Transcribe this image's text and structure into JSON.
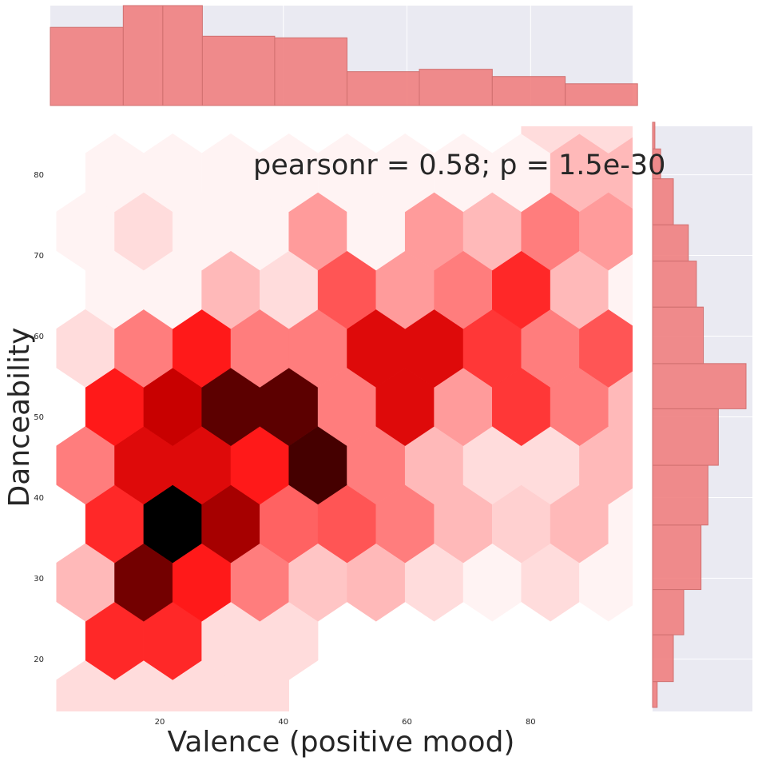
{
  "chart_data": {
    "type": "hexbin",
    "annotation": "pearsonr = 0.58; p = 1.5e-30",
    "xlabel": "Valence (positive mood)",
    "ylabel": "Danceability",
    "xlim": [
      2.3,
      96.5
    ],
    "ylim": [
      13.5,
      86
    ],
    "xticks": [
      20,
      40,
      60,
      80
    ],
    "yticks": [
      20,
      30,
      40,
      50,
      60,
      70,
      80
    ],
    "colormap": "Reds",
    "colors": {
      "hist_fill": "#f08080",
      "hist_edge": "#d07070",
      "margin_bg": "#eaeaf2",
      "grid": "#ffffff"
    },
    "hex_grid": {
      "x0": 8.0,
      "dx": 9.4,
      "y0": 15.0,
      "dy": 7.25,
      "rows": [
        {
          "row": 0,
          "cells": [
            0.15,
            0.15,
            0.15,
            0.15,
            0,
            0,
            0,
            0,
            0,
            0
          ]
        },
        {
          "row": 1,
          "cells": [
            0.8,
            0.8,
            0.15,
            0.15,
            0,
            0,
            0,
            0,
            0,
            0
          ]
        },
        {
          "row": 2,
          "cells": [
            0.3,
            0.95,
            0.85,
            0.5,
            0.25,
            0.3,
            0.15,
            0.05,
            0.15,
            0.05
          ]
        },
        {
          "row": 3,
          "cells": [
            0.8,
            1.0,
            0.92,
            0.6,
            0.65,
            0.5,
            0.3,
            0.2,
            0.3,
            0.05
          ]
        },
        {
          "row": 4,
          "cells": [
            0.5,
            0.88,
            0.88,
            0.85,
            0.97,
            0.5,
            0.3,
            0.15,
            0.15,
            0.3,
            0.3
          ]
        },
        {
          "row": 5,
          "cells": [
            0.85,
            0.9,
            0.96,
            0.96,
            0.5,
            0.88,
            0.4,
            0.75,
            0.5,
            0.3
          ]
        },
        {
          "row": 6,
          "cells": [
            0.15,
            0.5,
            0.85,
            0.5,
            0.5,
            0.88,
            0.88,
            0.75,
            0.5,
            0.65,
            0.15
          ]
        },
        {
          "row": 7,
          "cells": [
            0.05,
            0.05,
            0.3,
            0.15,
            0.65,
            0.4,
            0.5,
            0.8,
            0.3,
            0.05
          ]
        },
        {
          "row": 8,
          "cells": [
            0.05,
            0.15,
            0.05,
            0.05,
            0.4,
            0.05,
            0.4,
            0.3,
            0.5,
            0.4,
            0.5
          ]
        },
        {
          "row": 9,
          "cells": [
            0.05,
            0.05,
            0.05,
            0.05,
            0.05,
            0.05,
            0.05,
            0.05,
            0.3,
            0.3
          ]
        },
        {
          "row": 10,
          "cells": [
            0,
            0,
            0,
            0,
            0,
            0,
            0,
            0,
            0.15,
            0.15,
            0
          ]
        }
      ]
    },
    "marginal_x": {
      "bin_edges": [
        2.3,
        14.1,
        20.5,
        26.9,
        38.6,
        50.3,
        62.0,
        73.8,
        85.6,
        97.3
      ],
      "counts": [
        97,
        124,
        124,
        86,
        84,
        42,
        45,
        36,
        27
      ]
    },
    "marginal_y": {
      "bin_edges": [
        14.0,
        17.2,
        23.0,
        28.6,
        36.6,
        44.0,
        51.0,
        56.6,
        63.6,
        69.3,
        73.8,
        79.5,
        83.2,
        86.5
      ],
      "counts": [
        4,
        18,
        27,
        42,
        48,
        57,
        81,
        44,
        38,
        31,
        18,
        7,
        2
      ]
    }
  }
}
